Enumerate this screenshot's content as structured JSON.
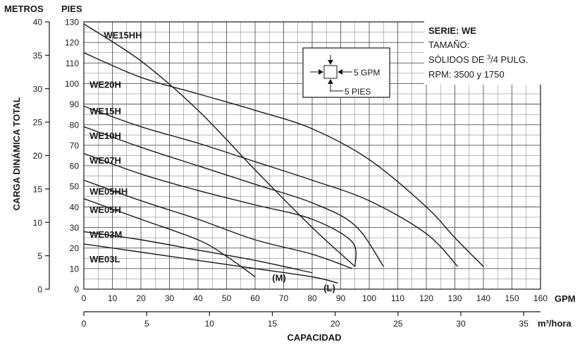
{
  "chart_data": {
    "type": "line",
    "title": "",
    "y_left_label_top": "METROS",
    "y_right_label_top": "PIES",
    "ylabel": "CARGA DINÁMICA TOTAL",
    "xlabel": "CAPACIDAD",
    "x_unit_gpm": "GPM",
    "x_unit_m3": "m³/hora",
    "xlim_gpm": [
      0,
      160
    ],
    "ylim_pies": [
      0,
      130
    ],
    "ylim_metros": [
      0,
      40
    ],
    "x_ticks_gpm": [
      "0",
      "10",
      "20",
      "30",
      "40",
      "50",
      "60",
      "70",
      "80",
      "90",
      "100",
      "110",
      "120",
      "130",
      "140",
      "150",
      "160"
    ],
    "x_ticks_m3": [
      {
        "label": "0",
        "value": 0
      },
      {
        "label": "5",
        "value": 5
      },
      {
        "label": "10",
        "value": 10
      },
      {
        "label": "15",
        "value": 15
      },
      {
        "label": "20",
        "value": 20
      },
      {
        "label": "25",
        "value": 25
      },
      {
        "label": "30",
        "value": 30
      },
      {
        "label": "35",
        "value": 35
      }
    ],
    "y_ticks_pies": [
      "0",
      "10",
      "20",
      "30",
      "40",
      "50",
      "60",
      "70",
      "80",
      "90",
      "100",
      "110",
      "120",
      "130"
    ],
    "y_ticks_metros": [
      {
        "label": "0",
        "value": 0
      },
      {
        "label": "5",
        "value": 5
      },
      {
        "label": "10",
        "value": 10
      },
      {
        "label": "15",
        "value": 15
      },
      {
        "label": "20",
        "value": 20
      },
      {
        "label": "25",
        "value": 25
      },
      {
        "label": "30",
        "value": 30
      },
      {
        "label": "35",
        "value": 35
      },
      {
        "label": "40",
        "value": 40
      }
    ],
    "series": [
      {
        "name": "WE15HH",
        "label_at": [
          7,
          122
        ],
        "points": [
          [
            0,
            129
          ],
          [
            20,
            111
          ],
          [
            40,
            87
          ],
          [
            60,
            58
          ],
          [
            80,
            30
          ],
          [
            95,
            11
          ]
        ]
      },
      {
        "name": "WE20H",
        "label_at": [
          2,
          98
        ],
        "points": [
          [
            0,
            115
          ],
          [
            20,
            103
          ],
          [
            40,
            95
          ],
          [
            60,
            87
          ],
          [
            80,
            78
          ],
          [
            100,
            63
          ],
          [
            120,
            40
          ],
          [
            130,
            25
          ],
          [
            140,
            11
          ]
        ]
      },
      {
        "name": "WE15H",
        "label_at": [
          2,
          85
        ],
        "points": [
          [
            0,
            89
          ],
          [
            20,
            79
          ],
          [
            40,
            71
          ],
          [
            60,
            62
          ],
          [
            80,
            53
          ],
          [
            100,
            43
          ],
          [
            120,
            27
          ],
          [
            131,
            11
          ]
        ]
      },
      {
        "name": "WE10H",
        "label_at": [
          2,
          73
        ],
        "points": [
          [
            0,
            79
          ],
          [
            20,
            69
          ],
          [
            40,
            60
          ],
          [
            60,
            51
          ],
          [
            80,
            42
          ],
          [
            95,
            31
          ],
          [
            105,
            11
          ]
        ]
      },
      {
        "name": "WE07H",
        "label_at": [
          2,
          61
        ],
        "points": [
          [
            0,
            66
          ],
          [
            20,
            56
          ],
          [
            40,
            48
          ],
          [
            60,
            41
          ],
          [
            80,
            34
          ],
          [
            94,
            23
          ],
          [
            95,
            11
          ]
        ]
      },
      {
        "name": "WE05HH",
        "label_at": [
          2,
          46
        ],
        "points": [
          [
            0,
            53
          ],
          [
            20,
            43
          ],
          [
            40,
            34
          ],
          [
            60,
            24
          ],
          [
            80,
            17
          ],
          [
            94,
            10
          ]
        ]
      },
      {
        "name": "WE05H",
        "label_at": [
          2,
          37
        ],
        "points": [
          [
            0,
            44
          ],
          [
            20,
            34
          ],
          [
            40,
            24
          ],
          [
            50,
            16
          ],
          [
            60,
            6
          ]
        ]
      },
      {
        "name": "WE03M",
        "label_at": [
          2,
          25
        ],
        "points": [
          [
            0,
            28
          ],
          [
            20,
            24
          ],
          [
            40,
            19
          ],
          [
            60,
            14
          ],
          [
            80,
            8
          ]
        ],
        "end_label": "(M)",
        "end_label_at": [
          66,
          4
        ]
      },
      {
        "name": "WE03L",
        "label_at": [
          2,
          13
        ],
        "points": [
          [
            0,
            22
          ],
          [
            20,
            18
          ],
          [
            40,
            14
          ],
          [
            60,
            10
          ],
          [
            80,
            6
          ],
          [
            89,
            3
          ]
        ],
        "end_label": "(L)",
        "end_label_at": [
          84,
          -1
        ]
      }
    ],
    "info_box": {
      "line1": "SERIE: WE",
      "line2": "TAMAÑO:",
      "line3_prefix": "SÓLIDOS DE ",
      "line3_sup": "3",
      "line3_sub": "/4 PULG.",
      "line4": "RPM: 3500 y 1750"
    },
    "scale_key": {
      "h_label": "5 GPM",
      "v_label": "5 PIES"
    },
    "colors": {
      "line": "#1a1a1a",
      "grid": "#555555",
      "background": "#ffffff"
    }
  }
}
